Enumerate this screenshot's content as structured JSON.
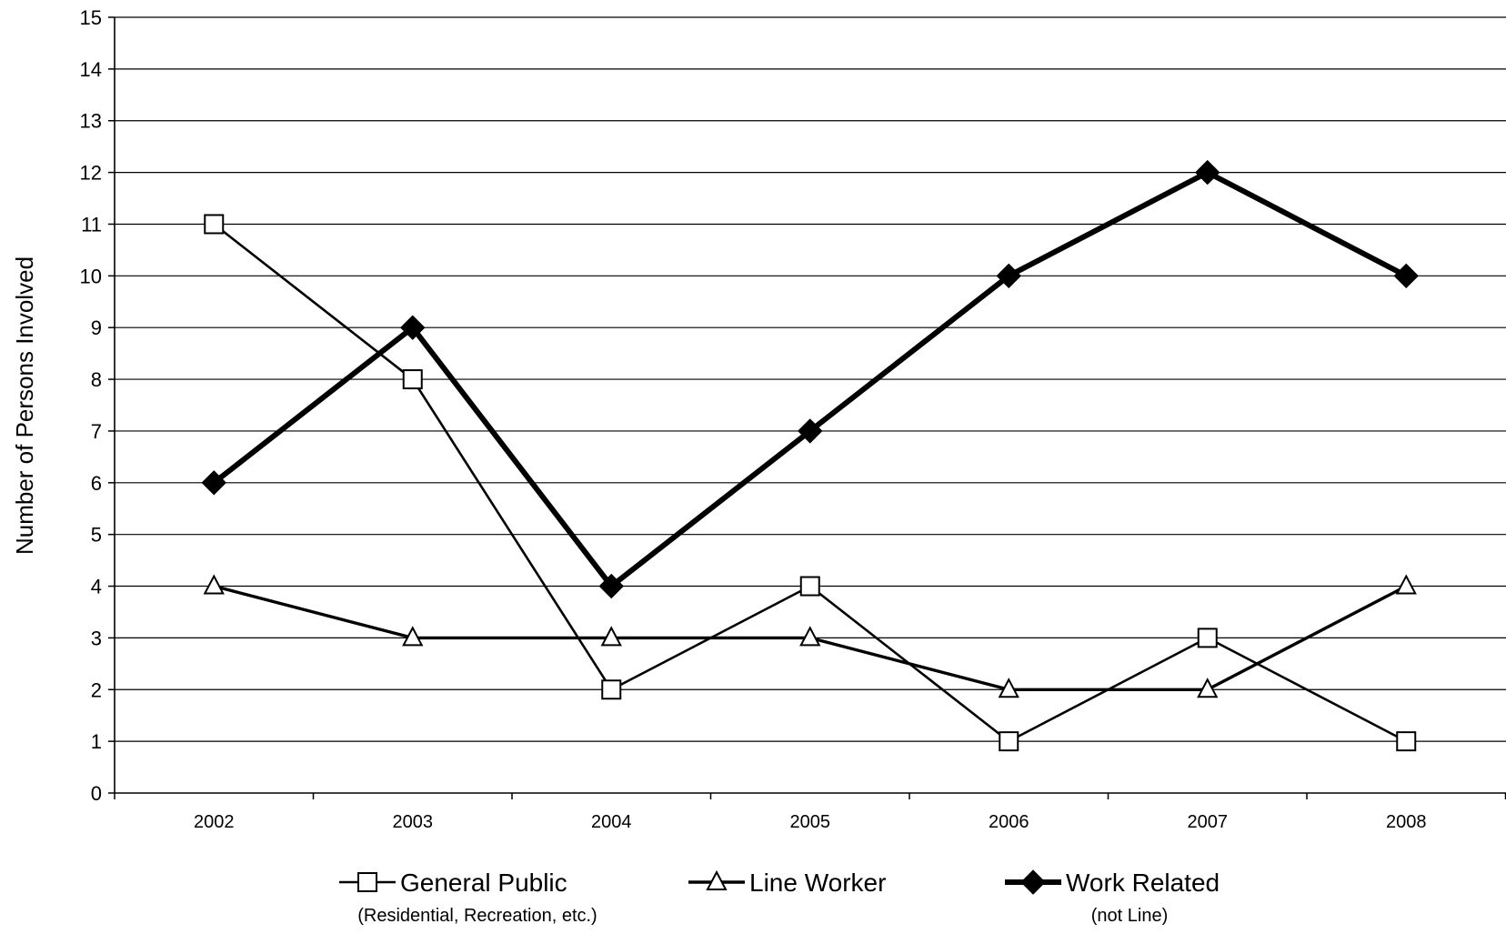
{
  "chart_data": {
    "type": "line",
    "title": "",
    "xlabel": "",
    "ylabel": "Number of Persons Involved",
    "categories": [
      "2002",
      "2003",
      "2004",
      "2005",
      "2006",
      "2007",
      "2008"
    ],
    "ylim": [
      0,
      15
    ],
    "yticks": [
      0,
      1,
      2,
      3,
      4,
      5,
      6,
      7,
      8,
      9,
      10,
      11,
      12,
      13,
      14,
      15
    ],
    "grid": true,
    "legend_position": "bottom",
    "series": [
      {
        "name": "General Public",
        "subtitle": "(Residential, Recreation, etc.)",
        "marker": "square-open",
        "line_style": "thin",
        "values": [
          11,
          8,
          2,
          4,
          1,
          3,
          1
        ]
      },
      {
        "name": "Line Worker",
        "subtitle": "",
        "marker": "triangle-open",
        "line_style": "medium",
        "values": [
          4,
          3,
          3,
          3,
          2,
          2,
          4
        ]
      },
      {
        "name": "Work Related",
        "subtitle": "(not Line)",
        "marker": "diamond-filled",
        "line_style": "thick",
        "values": [
          6,
          9,
          4,
          7,
          10,
          12,
          10
        ]
      }
    ],
    "colors": {
      "line": "#000000",
      "grid": "#000000",
      "background": "#ffffff"
    }
  }
}
